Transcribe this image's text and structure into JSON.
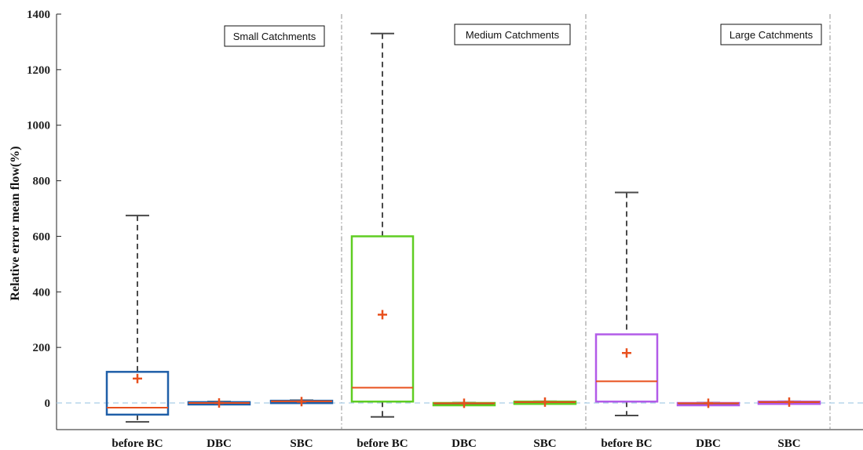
{
  "chart_data": {
    "type": "box",
    "ylabel": "Relative error mean flow(%)",
    "xlabel": "",
    "ylim": [
      -100,
      1400
    ],
    "yticks": [
      0,
      200,
      400,
      600,
      800,
      1000,
      1200,
      1400
    ],
    "groups": [
      "Small Catchments",
      "Medium Catchments",
      "Large Catchments"
    ],
    "categories": [
      "before BC",
      "DBC",
      "SBC",
      "before BC",
      "DBC",
      "SBC",
      "before BC",
      "DBC",
      "SBC"
    ],
    "reference_line": 0,
    "boxes": [
      {
        "category": "before BC",
        "group": "Small Catchments",
        "whisker_low": -68,
        "q1": -42,
        "median": -17,
        "q3": 112,
        "whisker_high": 675,
        "mean": 88,
        "color": "#1f5fa8"
      },
      {
        "category": "DBC",
        "group": "Small Catchments",
        "whisker_low": -4,
        "q1": -2,
        "median": 0,
        "q3": 3,
        "whisker_high": 5,
        "mean": 0,
        "color": "#1f5fa8"
      },
      {
        "category": "SBC",
        "group": "Small Catchments",
        "whisker_low": 2,
        "q1": 4,
        "median": 6,
        "q3": 8,
        "whisker_high": 10,
        "mean": 5,
        "color": "#1f5fa8"
      },
      {
        "category": "before BC",
        "group": "Medium Catchments",
        "whisker_low": -50,
        "q1": 5,
        "median": 55,
        "q3": 600,
        "whisker_high": 1330,
        "mean": 318,
        "color": "#5fcd22"
      },
      {
        "category": "DBC",
        "group": "Medium Catchments",
        "whisker_low": -3,
        "q1": -2,
        "median": -1,
        "q3": 0,
        "whisker_high": 1,
        "mean": -1,
        "color": "#5fcd22"
      },
      {
        "category": "SBC",
        "group": "Medium Catchments",
        "whisker_low": 0,
        "q1": 1,
        "median": 3,
        "q3": 5,
        "whisker_high": 6,
        "mean": 3,
        "color": "#5fcd22"
      },
      {
        "category": "before BC",
        "group": "Large Catchments",
        "whisker_low": -45,
        "q1": 5,
        "median": 78,
        "q3": 247,
        "whisker_high": 758,
        "mean": 180,
        "color": "#b25be8"
      },
      {
        "category": "DBC",
        "group": "Large Catchments",
        "whisker_low": -3,
        "q1": -2,
        "median": -1,
        "q3": 0,
        "whisker_high": 1,
        "mean": -1,
        "color": "#b25be8"
      },
      {
        "category": "SBC",
        "group": "Large Catchments",
        "whisker_low": 0,
        "q1": 1,
        "median": 3,
        "q3": 5,
        "whisker_high": 6,
        "mean": 3,
        "color": "#b25be8"
      }
    ],
    "median_color": "#e8501e",
    "mean_color": "#e8501e",
    "whisker_color": "#4a4a4a",
    "reference_line_color": "#a9cde8",
    "grid": false
  }
}
